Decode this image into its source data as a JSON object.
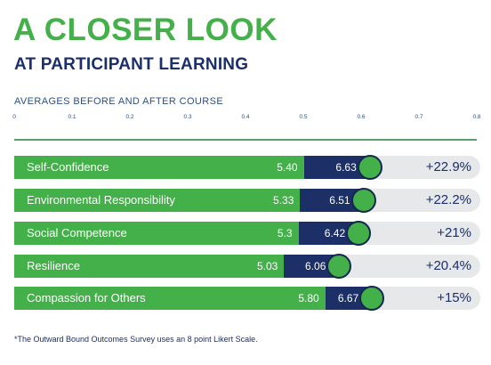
{
  "header": {
    "title": "A CLOSER LOOK",
    "subtitle": "AT PARTICIPANT LEARNING"
  },
  "chart_data": {
    "type": "bar",
    "title": "AVERAGES BEFORE AND AFTER COURSE",
    "xlabel": "",
    "ylabel": "",
    "tick_labels": [
      "0",
      "0.1",
      "0.2",
      "0.3",
      "0.4",
      "0.5",
      "0.6",
      "0.7",
      "0.8"
    ],
    "categories": [
      "Self-Confidence",
      "Environmental Responsibility",
      "Social Competence",
      "Resilience",
      "Compassion for Others"
    ],
    "series": [
      {
        "values": [
          5.4,
          5.33,
          5.3,
          5.03,
          5.8
        ],
        "labels": [
          "5.40",
          "5.33",
          "5.3",
          "5.03",
          "5.80"
        ]
      },
      {
        "values": [
          6.63,
          6.51,
          6.42,
          6.06,
          6.67
        ],
        "labels": [
          "6.63",
          "6.51",
          "6.42",
          "6.06",
          "6.67"
        ]
      }
    ],
    "change_labels": [
      "+22.9%",
      "+22.2%",
      "+21%",
      "+20.4%",
      "+15%"
    ],
    "colors": {
      "before": "#43b049",
      "after": "#1c2f66",
      "track": "#e6e8ea",
      "text": "#1b2f6b"
    },
    "grid": false
  },
  "footnote": "*The Outward Bound Outcomes Survey uses an 8 point Likert Scale."
}
